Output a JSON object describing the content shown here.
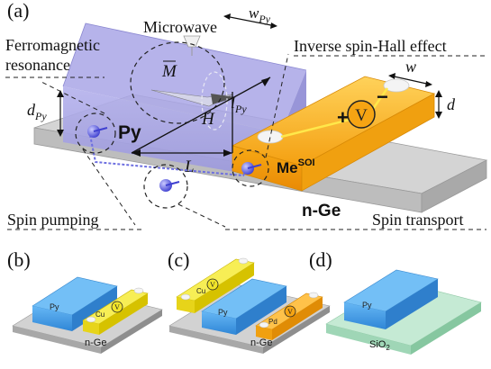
{
  "panels": {
    "a": {
      "tag": "(a)",
      "microwave": "Microwave",
      "w_py": "w",
      "w_py_sub": "Py",
      "ferro_line1": "Ferromagnetic",
      "ferro_line2": "resonance",
      "ishe": "Inverse spin-Hall effect",
      "m_label": "M",
      "h_label": "H",
      "py_label": "Py",
      "d_py": "d",
      "d_py_sub": "Py",
      "l_py": "l",
      "l_py_sub": "Py",
      "L": "L",
      "w": "w",
      "d": "d",
      "plus": "+",
      "minus": "−",
      "voltmeter": "V",
      "me": "Me",
      "me_sup": "SOI",
      "substrate": "n-Ge",
      "spin_pumping": "Spin pumping",
      "spin_transport": "Spin transport"
    },
    "b": {
      "tag": "(b)",
      "py": "Py",
      "cu": "Cu",
      "substrate": "n-Ge",
      "voltmeter": "V"
    },
    "c": {
      "tag": "(c)",
      "py": "Py",
      "pd": "Pd",
      "cu": "Cu",
      "substrate": "n-Ge",
      "voltmeter": "V"
    },
    "d": {
      "tag": "(d)",
      "py": "Py",
      "substrate": "SiO",
      "substrate_sub": "2"
    }
  },
  "colors": {
    "py_box": "#a9a6e6",
    "me_bar": "#f6a413",
    "substrate_gray": "#c9c9c9",
    "blue_bar": "#4da3ec",
    "yellow_bar": "#f2e52a",
    "sio2": "#bfe5cf",
    "spin_ball": "#5a5ce8"
  }
}
